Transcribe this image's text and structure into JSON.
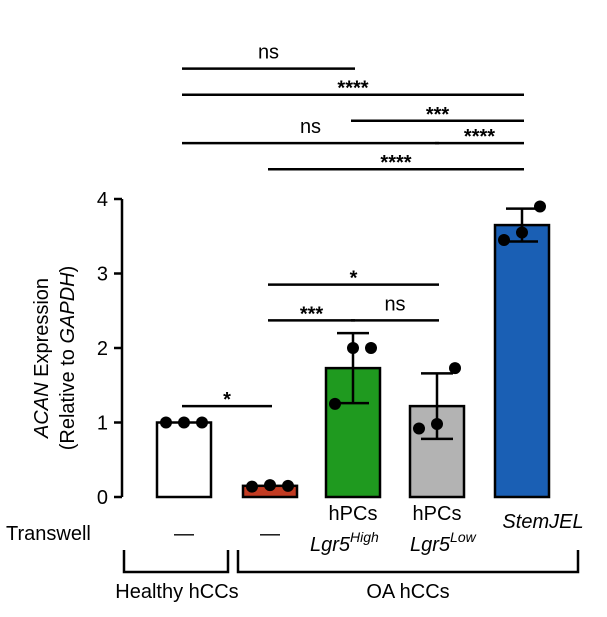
{
  "chart_data": {
    "type": "bar",
    "ylabel_italic": "ACAN",
    "ylabel_rest": " Expression",
    "ylabel_line2_prefix": "(Relative to ",
    "ylabel_line2_italic": "GAPDH",
    "ylabel_line2_suffix": ")",
    "ylim": [
      0,
      4
    ],
    "yticks": [
      "0",
      "1",
      "2",
      "3",
      "4"
    ],
    "bars": [
      {
        "name": "healthy",
        "mean": 1.0,
        "sd": 0.0,
        "points": [
          1.0,
          1.0,
          1.0
        ],
        "color": "#ffffff"
      },
      {
        "name": "oa",
        "mean": 0.15,
        "sd": 0.03,
        "points": [
          0.14,
          0.16,
          0.15
        ],
        "color": "#c23b22"
      },
      {
        "name": "lgr5high",
        "mean": 1.73,
        "sd": 0.47,
        "points": [
          1.25,
          2.0,
          2.0
        ],
        "color": "#1f9a1f"
      },
      {
        "name": "lgr5low",
        "mean": 1.22,
        "sd": 0.44,
        "points": [
          0.92,
          0.98,
          1.73
        ],
        "color": "#b3b3b3"
      },
      {
        "name": "stemjel",
        "mean": 3.65,
        "sd": 0.22,
        "points": [
          3.45,
          3.55,
          3.9
        ],
        "color": "#1a5fb4"
      }
    ],
    "comparisons": [
      {
        "from": 0,
        "to": 1,
        "label": "*",
        "y": 1.22
      },
      {
        "from": 1,
        "to": 2,
        "label": "***",
        "y": 2.37
      },
      {
        "from": 2,
        "to": 3,
        "label": "ns",
        "y": 2.37
      },
      {
        "from": 1,
        "to": 3,
        "label": "*",
        "y": 2.85
      },
      {
        "from": 1,
        "to": 4,
        "label": "****",
        "y": 4.4
      },
      {
        "from": 0,
        "to": 3,
        "label": "ns",
        "y": 4.75
      },
      {
        "from": 3,
        "to": 4,
        "label": "****",
        "y": 4.75
      },
      {
        "from": 2,
        "to": 4,
        "label": "***",
        "y": 5.05
      },
      {
        "from": 0,
        "to": 4,
        "label": "****",
        "y": 5.4
      },
      {
        "from": 0,
        "to": 2,
        "label": "ns",
        "y": 5.75
      }
    ]
  },
  "rows": {
    "transwell_label": "Transwell",
    "dash": "—",
    "hpcs": "hPCs",
    "lgr5": "Lgr5",
    "high": "High",
    "low": "Low",
    "stemjel": "StemJEL",
    "group_healthy": "Healthy hCCs",
    "group_oa": "OA hCCs"
  }
}
